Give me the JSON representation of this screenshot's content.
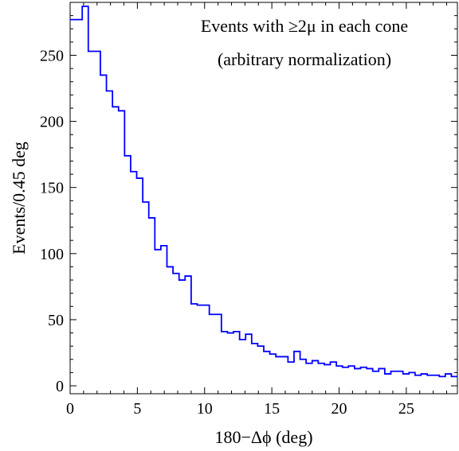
{
  "chart_data": {
    "type": "line",
    "style": "step-histogram",
    "series": [
      {
        "color": "#0000ff",
        "bin_width": 0.45,
        "bin_starts": [
          0.0,
          0.45,
          0.9,
          1.35,
          1.8,
          2.25,
          2.7,
          3.15,
          3.6,
          4.05,
          4.5,
          4.95,
          5.4,
          5.85,
          6.3,
          6.75,
          7.2,
          7.65,
          8.1,
          8.55,
          9.0,
          9.45,
          9.9,
          10.35,
          10.8,
          11.25,
          11.7,
          12.15,
          12.6,
          13.05,
          13.5,
          13.95,
          14.4,
          14.85,
          15.3,
          15.75,
          16.2,
          16.65,
          17.1,
          17.55,
          18.0,
          18.45,
          18.9,
          19.35,
          19.8,
          20.25,
          20.7,
          21.15,
          21.6,
          22.05,
          22.5,
          22.95,
          23.4,
          23.85,
          24.3,
          24.75,
          25.2,
          25.65,
          26.1,
          26.55,
          27.0,
          27.45,
          27.9,
          28.35,
          28.8
        ],
        "values": [
          277,
          277,
          287,
          253,
          253,
          235,
          223,
          211,
          208,
          174,
          162,
          157,
          139,
          127,
          103,
          106,
          90,
          85,
          80,
          83,
          62,
          61,
          61,
          54,
          54,
          41,
          40,
          41,
          35,
          39,
          32,
          30,
          26,
          24,
          22,
          22,
          18,
          26,
          20,
          17,
          19,
          17,
          16,
          18,
          15,
          14,
          15,
          13,
          14,
          13,
          11,
          13,
          9,
          11,
          11,
          9,
          10,
          8,
          9,
          8,
          8,
          7,
          9,
          7,
          7
        ]
      }
    ],
    "xlabel": "180−Δϕ (deg)",
    "ylabel": "Events/0.45 deg",
    "xlim": [
      0,
      28.8
    ],
    "ylim": [
      -6,
      290
    ],
    "xticks": [
      "0",
      "5",
      "10",
      "15",
      "20",
      "25"
    ],
    "yticks": [
      "0",
      "50",
      "100",
      "150",
      "200",
      "250"
    ],
    "annotation_line1": "Events with ≥2μ in each cone",
    "annotation_line2": "(arbitrary normalization)",
    "grid": false,
    "legend": "none"
  }
}
